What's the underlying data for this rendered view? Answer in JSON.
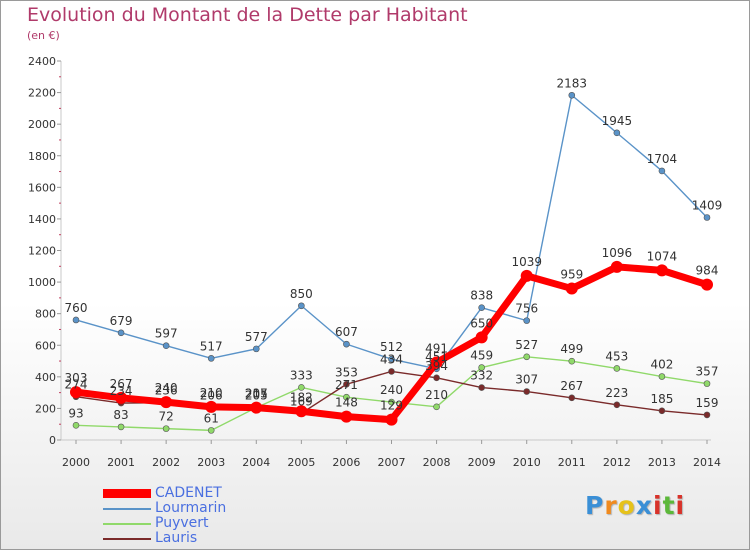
{
  "header": {
    "title": "Evolution du Montant de la Dette par Habitant",
    "unit": "(en €)"
  },
  "logo": {
    "text": "Proxiti",
    "letters": [
      "P",
      "r",
      "o",
      "x",
      "i",
      "t",
      "i"
    ]
  },
  "chart_data": {
    "type": "line",
    "title": "Evolution du Montant de la Dette par Habitant",
    "subtitle": "(en €)",
    "x": [
      "2000",
      "2001",
      "2002",
      "2003",
      "2004",
      "2005",
      "2006",
      "2007",
      "2008",
      "2009",
      "2010",
      "2011",
      "2012",
      "2013",
      "2014"
    ],
    "ylim": [
      0,
      2400
    ],
    "yticks": [
      0,
      200,
      400,
      600,
      800,
      1000,
      1200,
      1400,
      1600,
      1800,
      2000,
      2200,
      2400
    ],
    "grid": false,
    "legend_position": "bottom-left",
    "series": [
      {
        "name": "CADENET",
        "color": "#ff0000",
        "values": [
          303,
          267,
          240,
          210,
          205,
          182,
          148,
          129,
          491,
          650,
          1039,
          959,
          1096,
          1074,
          984
        ]
      },
      {
        "name": "Lourmarin",
        "color": "#5a93c8",
        "values": [
          760,
          679,
          597,
          517,
          577,
          850,
          607,
          512,
          451,
          838,
          756,
          2183,
          1945,
          1704,
          1409
        ]
      },
      {
        "name": "Puyvert",
        "color": "#90d96a",
        "values": [
          93,
          83,
          72,
          61,
          205,
          333,
          271,
          240,
          210,
          459,
          527,
          499,
          453,
          402,
          357
        ]
      },
      {
        "name": "Lauris",
        "color": "#7a2a2a",
        "values": [
          274,
          234,
          236,
          206,
          217,
          169,
          353,
          434,
          394,
          332,
          307,
          267,
          223,
          185,
          159
        ]
      }
    ]
  }
}
